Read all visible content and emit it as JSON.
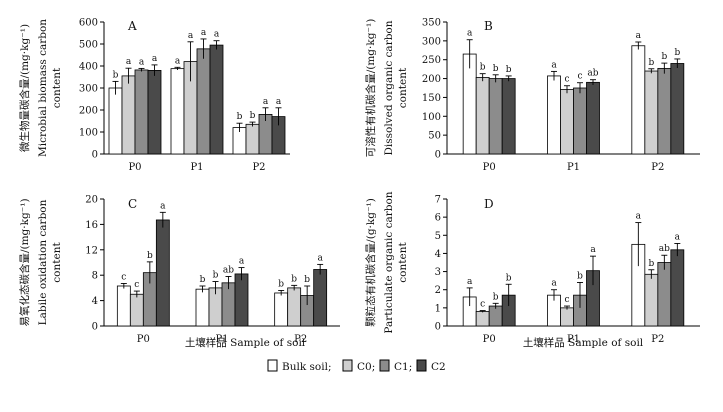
{
  "figure": {
    "x_axis_title": "土壤样品 Sample of soil",
    "legend": [
      {
        "name": "Bulk soil;",
        "color": "#ffffff"
      },
      {
        "name": "C0;",
        "color": "#cfcfcf"
      },
      {
        "name": "C1;",
        "color": "#8c8c8c"
      },
      {
        "name": "C2",
        "color": "#4a4a4a"
      }
    ]
  },
  "chart_data": [
    {
      "type": "bar",
      "panel": "A",
      "categories": [
        "P0",
        "P1",
        "P2"
      ],
      "ylim": [
        0,
        600
      ],
      "yticks": [
        0,
        100,
        200,
        300,
        400,
        500,
        600
      ],
      "ylabel_cn": "微生物量碳含量/(mg·kg⁻¹)",
      "ylabel_en": [
        "Microbial biomass carbon",
        "content"
      ],
      "series": [
        {
          "name": "Bulk soil",
          "values": [
            300,
            388,
            120
          ],
          "errors": [
            30,
            6,
            20
          ],
          "labels": [
            "b",
            "a",
            "b"
          ]
        },
        {
          "name": "C0",
          "values": [
            355,
            420,
            135
          ],
          "errors": [
            35,
            90,
            10
          ],
          "labels": [
            "a",
            "a",
            "b"
          ]
        },
        {
          "name": "C1",
          "values": [
            382,
            478,
            180
          ],
          "errors": [
            7,
            45,
            30
          ],
          "labels": [
            "a",
            "a",
            "a"
          ]
        },
        {
          "name": "C2",
          "values": [
            380,
            495,
            170
          ],
          "errors": [
            25,
            20,
            40
          ],
          "labels": [
            "a",
            "a",
            "a"
          ]
        }
      ]
    },
    {
      "type": "bar",
      "panel": "B",
      "categories": [
        "P0",
        "P1",
        "P2"
      ],
      "ylim": [
        0,
        350
      ],
      "yticks": [
        0,
        50,
        100,
        150,
        200,
        250,
        300,
        350
      ],
      "ylabel_cn": "可溶性有机碳含量/(mg·kg⁻¹)",
      "ylabel_en": [
        "Dissolved organic carbon",
        "content"
      ],
      "series": [
        {
          "name": "Bulk soil",
          "values": [
            265,
            207,
            287
          ],
          "errors": [
            38,
            12,
            10
          ],
          "labels": [
            "a",
            "a",
            "a"
          ]
        },
        {
          "name": "C0",
          "values": [
            203,
            171,
            220
          ],
          "errors": [
            10,
            10,
            6
          ],
          "labels": [
            "b",
            "c",
            "b"
          ]
        },
        {
          "name": "C1",
          "values": [
            200,
            175,
            227
          ],
          "errors": [
            10,
            14,
            14
          ],
          "labels": [
            "b",
            "c",
            "b"
          ]
        },
        {
          "name": "C2",
          "values": [
            200,
            190,
            240
          ],
          "errors": [
            7,
            7,
            12
          ],
          "labels": [
            "b",
            "ab",
            "b"
          ]
        }
      ]
    },
    {
      "type": "bar",
      "panel": "C",
      "categories": [
        "P0",
        "P1",
        "P2"
      ],
      "ylim": [
        0,
        20
      ],
      "yticks": [
        0,
        4,
        8,
        12,
        16,
        20
      ],
      "ylabel_cn": "易氧化态碳含量/(mg·kg⁻¹)",
      "ylabel_en": [
        "Labile oxidation carbon",
        "content"
      ],
      "series": [
        {
          "name": "Bulk soil",
          "values": [
            6.3,
            5.8,
            5.2
          ],
          "errors": [
            0.4,
            0.5,
            0.4
          ],
          "labels": [
            "c",
            "b",
            "b"
          ]
        },
        {
          "name": "C0",
          "values": [
            5.0,
            6.0,
            6.0
          ],
          "errors": [
            0.5,
            1.0,
            0.4
          ],
          "labels": [
            "c",
            "b",
            "b"
          ]
        },
        {
          "name": "C1",
          "values": [
            8.4,
            6.8,
            4.8
          ],
          "errors": [
            1.7,
            1.0,
            1.5
          ],
          "labels": [
            "b",
            "ab",
            "b"
          ]
        },
        {
          "name": "C2",
          "values": [
            16.7,
            8.2,
            8.9
          ],
          "errors": [
            1.2,
            1.0,
            0.8
          ],
          "labels": [
            "a",
            "a",
            "a"
          ]
        }
      ]
    },
    {
      "type": "bar",
      "panel": "D",
      "categories": [
        "P0",
        "P1",
        "P2"
      ],
      "ylim": [
        0,
        7
      ],
      "yticks": [
        0,
        1,
        2,
        3,
        4,
        5,
        6,
        7
      ],
      "ylabel_cn": "颗粒态有机碳含量/(g·kg⁻¹)",
      "ylabel_en": [
        "Particulate organic carbon",
        "content"
      ],
      "series": [
        {
          "name": "Bulk soil",
          "values": [
            1.6,
            1.7,
            4.5
          ],
          "errors": [
            0.5,
            0.3,
            1.2
          ],
          "labels": [
            "a",
            "a",
            "a"
          ]
        },
        {
          "name": "C0",
          "values": [
            0.8,
            1.0,
            2.85
          ],
          "errors": [
            0.05,
            0.1,
            0.25
          ],
          "labels": [
            "c",
            "c",
            "b"
          ]
        },
        {
          "name": "C1",
          "values": [
            1.1,
            1.7,
            3.5
          ],
          "errors": [
            0.15,
            0.7,
            0.4
          ],
          "labels": [
            "b",
            "b",
            "ab"
          ]
        },
        {
          "name": "C2",
          "values": [
            1.7,
            3.05,
            4.2
          ],
          "errors": [
            0.6,
            0.8,
            0.35
          ],
          "labels": [
            "b",
            "a",
            "a"
          ]
        }
      ]
    }
  ]
}
